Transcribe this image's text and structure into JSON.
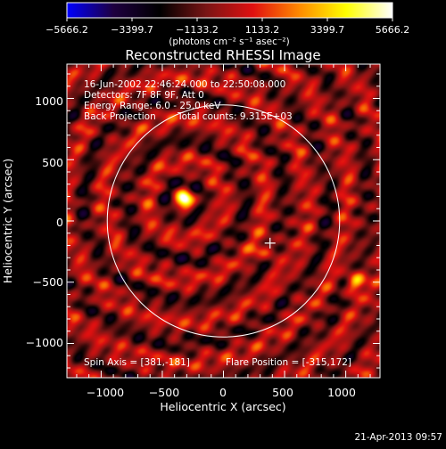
{
  "chart_data": {
    "type": "heatmap",
    "title": "Reconstructed RHESSI Image",
    "xlabel": "Heliocentric X (arcsec)",
    "ylabel": "Heliocentric Y (arcsec)",
    "xlim": [
      -1280,
      1280
    ],
    "ylim": [
      -1280,
      1280
    ],
    "x_ticks": [
      -1000,
      -500,
      0,
      500,
      1000
    ],
    "y_ticks": [
      -1000,
      -500,
      0,
      500,
      1000
    ],
    "x_tick_labels": [
      "−1000",
      "−500",
      "0",
      "500",
      "1000"
    ],
    "y_tick_labels": [
      "−1000",
      "−500",
      "0",
      "500",
      "1000"
    ],
    "colorbar": {
      "min": -5666.2,
      "max": 5666.2,
      "tick_labels": [
        "−5666.2",
        "−3399.7",
        "−1133.2",
        "1133.2",
        "3399.7",
        "5666.2"
      ],
      "unit": "(photons cm⁻² s⁻¹ asec⁻²)",
      "colormap_stops": [
        "#0000ff",
        "#1e0040",
        "#000000",
        "#7a1515",
        "#e01010",
        "#ff8a00",
        "#ffff00",
        "#ffffff"
      ]
    },
    "annotations": {
      "time_range": "16-Jun-2002 22:46:24.000 to 22:50:08.000",
      "detectors": "Detectors: 7F 8F 9F, Att 0",
      "energy_range": "Energy Range: 6.0 - 25.0 keV",
      "method": "Back Projection",
      "total_counts": "Total counts: 9.315E+03",
      "spin_axis": "Spin Axis = [381,-181]",
      "flare_position": "Flare Position = [-315,172]"
    },
    "solar_limb": {
      "center": [
        0,
        0
      ],
      "radius_arcsec": 950
    },
    "bright_sources": [
      {
        "x": -315,
        "y": 172,
        "peak": 5666.2
      },
      {
        "x": 1085,
        "y": -500,
        "peak": 4200
      },
      {
        "x": 345,
        "y": -250,
        "peak": 2400
      }
    ],
    "spin_axis_marker": {
      "x": 381,
      "y": -181
    },
    "ring_structure": {
      "center": [
        -315,
        172
      ],
      "ring_radii_arcsec": [
        320,
        660,
        1000
      ],
      "ring_amplitude": 1500
    },
    "date_stamp": "21-Apr-2013 09:57"
  }
}
